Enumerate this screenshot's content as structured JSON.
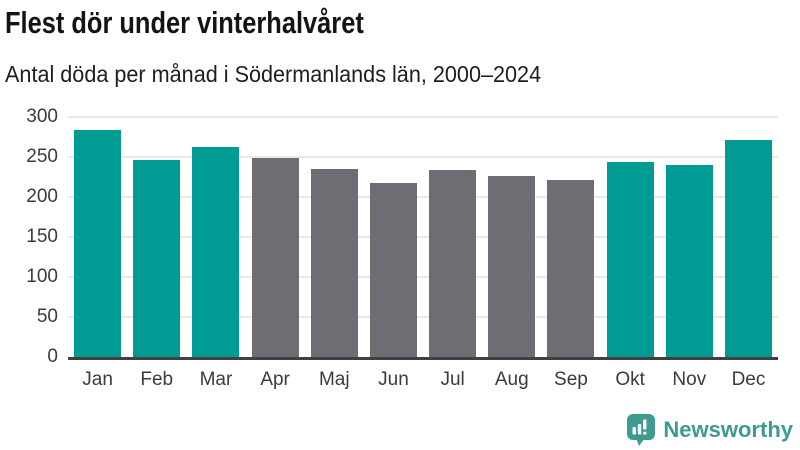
{
  "header": {
    "title": "Flest dör under vinterhalvåret",
    "subtitle": "Antal döda per månad i Södermanlands län, 2000–2024"
  },
  "chart_data": {
    "type": "bar",
    "title": "Flest dör under vinterhalvåret",
    "subtitle": "Antal döda per månad i Södermanlands län, 2000–2024",
    "categories": [
      "Jan",
      "Feb",
      "Mar",
      "Apr",
      "Maj",
      "Jun",
      "Jul",
      "Aug",
      "Sep",
      "Okt",
      "Nov",
      "Dec"
    ],
    "values": [
      284,
      246,
      263,
      249,
      235,
      217,
      234,
      226,
      221,
      244,
      240,
      271
    ],
    "bar_groups": [
      "winter",
      "winter",
      "winter",
      "summer",
      "summer",
      "summer",
      "summer",
      "summer",
      "summer",
      "winter",
      "winter",
      "winter"
    ],
    "colors": {
      "winter": "#009c94",
      "summer": "#6e6d73"
    },
    "xlabel": "",
    "ylabel": "",
    "ylim": [
      0,
      300
    ],
    "yticks": [
      0,
      50,
      100,
      150,
      200,
      250,
      300
    ],
    "grid": "horizontal",
    "legend": "none"
  },
  "footer": {
    "brand": "Newsworthy",
    "logo_icon": "speech-bubble-with-bar-chart-and-exclamation",
    "brand_color": "#3f9a90"
  },
  "style_colors": {
    "axis_line": "#414141",
    "gridline": "#e9e9e9",
    "tick_text": "#3b3b3b",
    "title_text": "#141414"
  }
}
